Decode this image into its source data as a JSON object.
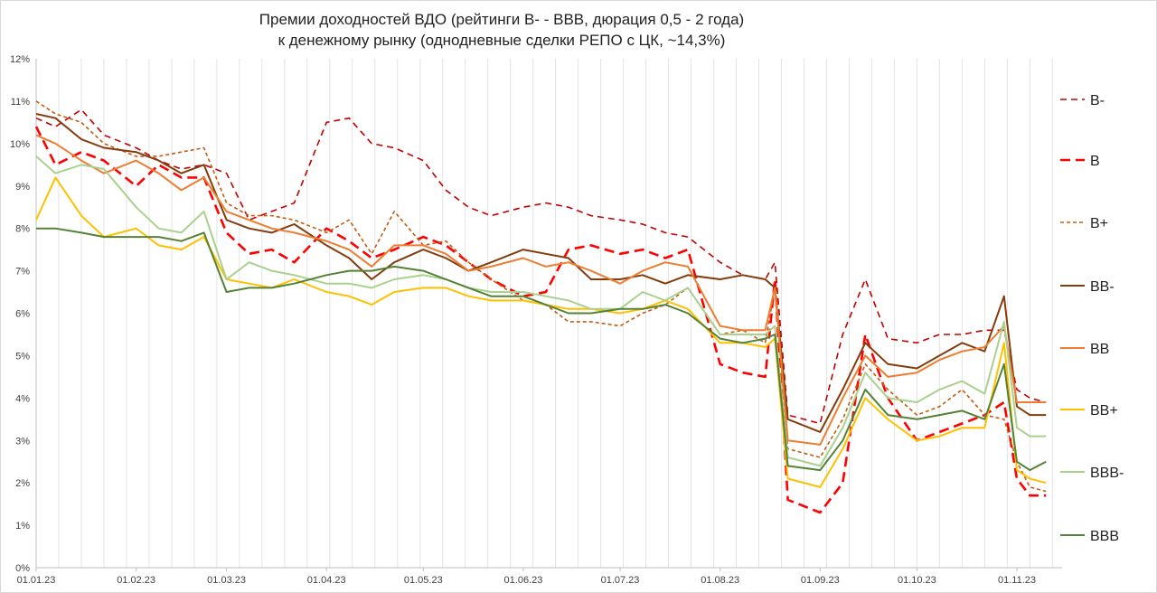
{
  "chart_data": {
    "type": "line",
    "title": "Премии доходностей ВДО (рейтинги B- -  BBB, дюрация 0,5 - 2 года)",
    "subtitle": "к денежному рынку (однодневные сделки РЕПО с ЦК, ~14,3%)",
    "xlabel": "",
    "ylabel": "",
    "x_ticks": [
      "01.01.23",
      "01.02.23",
      "01.03.23",
      "01.04.23",
      "01.05.23",
      "01.06.23",
      "01.07.23",
      "01.08.23",
      "01.09.23",
      "01.10.23",
      "01.11.23"
    ],
    "x_dates": [
      "2023-01-01",
      "2023-01-07",
      "2023-01-15",
      "2023-01-22",
      "2023-02-01",
      "2023-02-08",
      "2023-02-15",
      "2023-02-22",
      "2023-03-01",
      "2023-03-08",
      "2023-03-15",
      "2023-03-22",
      "2023-04-01",
      "2023-04-08",
      "2023-04-15",
      "2023-04-22",
      "2023-05-01",
      "2023-05-08",
      "2023-05-15",
      "2023-05-22",
      "2023-06-01",
      "2023-06-08",
      "2023-06-15",
      "2023-06-22",
      "2023-07-01",
      "2023-07-08",
      "2023-07-15",
      "2023-07-22",
      "2023-08-01",
      "2023-08-08",
      "2023-08-15",
      "2023-08-18",
      "2023-08-22",
      "2023-09-01",
      "2023-09-08",
      "2023-09-15",
      "2023-09-22",
      "2023-10-01",
      "2023-10-08",
      "2023-10-15",
      "2023-10-22",
      "2023-10-28",
      "2023-11-01",
      "2023-11-05",
      "2023-11-10"
    ],
    "y_ticks": [
      "0%",
      "1%",
      "2%",
      "3%",
      "4%",
      "5%",
      "6%",
      "7%",
      "8%",
      "9%",
      "10%",
      "11%",
      "12%"
    ],
    "ylim": [
      0,
      12
    ],
    "legend_position": "right",
    "grid": "vertical",
    "series": [
      {
        "name": "B-",
        "color": "#c00000",
        "dash": "dash",
        "values": [
          10.6,
          10.4,
          10.8,
          10.2,
          9.9,
          9.6,
          9.4,
          9.5,
          9.3,
          8.2,
          8.4,
          8.6,
          10.5,
          10.6,
          10.0,
          9.9,
          9.6,
          8.9,
          8.5,
          8.3,
          8.5,
          8.6,
          8.5,
          8.3,
          8.2,
          8.1,
          7.9,
          7.8,
          7.2,
          6.9,
          6.8,
          7.2,
          3.6,
          3.4,
          5.5,
          6.8,
          5.4,
          5.3,
          5.5,
          5.5,
          5.6,
          5.6,
          4.2,
          4.0,
          3.9
        ]
      },
      {
        "name": "B",
        "color": "#ff0000",
        "dash": "longdash",
        "values": [
          10.4,
          9.5,
          9.8,
          9.6,
          9.0,
          9.5,
          9.2,
          9.2,
          7.9,
          7.4,
          7.5,
          7.2,
          8.0,
          7.7,
          7.3,
          7.5,
          7.8,
          7.6,
          7.2,
          6.8,
          6.4,
          6.5,
          7.5,
          7.6,
          7.4,
          7.5,
          7.3,
          7.5,
          4.8,
          4.6,
          4.5,
          6.8,
          1.6,
          1.3,
          2.0,
          5.5,
          4.0,
          3.0,
          3.2,
          3.4,
          3.6,
          3.9,
          2.1,
          1.7,
          1.7
        ]
      },
      {
        "name": "B+",
        "color": "#c55a11",
        "dash": "shortdash",
        "values": [
          11.0,
          10.7,
          10.5,
          10.0,
          9.7,
          9.7,
          9.8,
          9.9,
          8.6,
          8.3,
          8.3,
          8.2,
          7.9,
          8.2,
          7.4,
          8.4,
          7.6,
          7.7,
          7.2,
          6.8,
          6.3,
          6.2,
          5.8,
          5.8,
          5.7,
          6.0,
          6.2,
          6.6,
          5.5,
          5.6,
          5.3,
          6.6,
          2.8,
          2.6,
          3.5,
          4.8,
          4.2,
          3.6,
          3.8,
          4.2,
          3.6,
          3.5,
          2.5,
          1.9,
          1.8
        ]
      },
      {
        "name": "BB-",
        "color": "#843c0c",
        "dash": "solid",
        "values": [
          10.7,
          10.6,
          10.1,
          9.9,
          9.8,
          9.6,
          9.3,
          9.5,
          8.2,
          8.0,
          7.9,
          8.1,
          7.6,
          7.3,
          6.8,
          7.2,
          7.5,
          7.3,
          7.0,
          7.2,
          7.5,
          7.4,
          7.3,
          6.8,
          6.8,
          6.9,
          6.7,
          6.9,
          6.8,
          6.9,
          6.8,
          6.6,
          3.5,
          3.2,
          4.2,
          5.3,
          4.8,
          4.7,
          5.0,
          5.3,
          5.1,
          6.4,
          3.8,
          3.6,
          3.6
        ]
      },
      {
        "name": "BB",
        "color": "#ed7d31",
        "dash": "solid",
        "values": [
          10.2,
          10.0,
          9.6,
          9.3,
          9.6,
          9.3,
          8.9,
          9.2,
          8.4,
          8.2,
          8.0,
          7.9,
          7.7,
          7.5,
          7.1,
          7.6,
          7.6,
          7.4,
          7.0,
          7.1,
          7.3,
          7.1,
          7.2,
          7.0,
          6.7,
          7.0,
          7.2,
          7.1,
          5.7,
          5.6,
          5.6,
          6.6,
          3.0,
          2.9,
          4.0,
          5.0,
          4.5,
          4.6,
          4.9,
          5.1,
          5.2,
          5.7,
          3.9,
          3.9,
          3.9
        ]
      },
      {
        "name": "BB+",
        "color": "#ffc000",
        "dash": "solid",
        "values": [
          8.2,
          9.2,
          8.3,
          7.8,
          8.0,
          7.6,
          7.5,
          7.8,
          6.8,
          6.7,
          6.6,
          6.8,
          6.5,
          6.4,
          6.2,
          6.5,
          6.6,
          6.6,
          6.4,
          6.3,
          6.3,
          6.2,
          6.1,
          6.1,
          6.0,
          6.1,
          6.3,
          6.1,
          5.3,
          5.3,
          5.2,
          5.4,
          2.1,
          1.9,
          2.8,
          4.0,
          3.5,
          3.0,
          3.1,
          3.3,
          3.3,
          5.3,
          2.3,
          2.1,
          2.0
        ]
      },
      {
        "name": "BBB-",
        "color": "#a9d18e",
        "dash": "solid",
        "values": [
          9.7,
          9.3,
          9.5,
          9.4,
          8.5,
          8.0,
          7.9,
          8.4,
          6.8,
          7.2,
          7.0,
          6.9,
          6.7,
          6.7,
          6.6,
          6.8,
          6.9,
          6.8,
          6.6,
          6.5,
          6.5,
          6.4,
          6.3,
          6.1,
          6.1,
          6.5,
          6.3,
          6.6,
          5.5,
          5.5,
          5.5,
          5.7,
          2.6,
          2.4,
          3.3,
          4.6,
          4.0,
          3.9,
          4.2,
          4.4,
          4.1,
          5.8,
          3.3,
          3.1,
          3.1
        ]
      },
      {
        "name": "BBB",
        "color": "#548235",
        "dash": "solid",
        "values": [
          8.0,
          8.0,
          7.9,
          7.8,
          7.8,
          7.8,
          7.7,
          7.9,
          6.5,
          6.6,
          6.6,
          6.7,
          6.9,
          7.0,
          7.0,
          7.1,
          7.0,
          6.8,
          6.6,
          6.4,
          6.4,
          6.2,
          6.0,
          6.0,
          6.1,
          6.1,
          6.2,
          6.0,
          5.4,
          5.3,
          5.4,
          5.5,
          2.4,
          2.3,
          3.0,
          4.2,
          3.6,
          3.5,
          3.6,
          3.7,
          3.5,
          4.8,
          2.5,
          2.3,
          2.5
        ]
      }
    ]
  }
}
